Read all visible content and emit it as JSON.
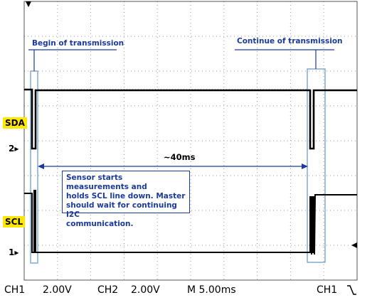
{
  "annotations": {
    "begin": "Begin of transmission",
    "continue": "Continue of transmission",
    "duration": "~40ms",
    "callout_lines": [
      "Sensor starts measurements and",
      "holds SCL line down. Master",
      "should wait for continuing I2C",
      "communication."
    ]
  },
  "channels": {
    "sda_label": "SDA",
    "scl_label": "SCL",
    "marker_2": "2",
    "marker_1": "1"
  },
  "status": {
    "ch1": "CH1",
    "ch1_volts": "2.00V",
    "ch2": "CH2",
    "ch2_volts": "2.00V",
    "timebase": "M 5.00ms",
    "trigger_ch": "CH1",
    "trigger_icon": "falling-edge-icon"
  },
  "colors": {
    "label_bg": "#ffe800",
    "annotation": "#1a3a9c",
    "trace": "#000000",
    "grid": "#9a9a9a",
    "highlight_box": "#a9c6df"
  }
}
